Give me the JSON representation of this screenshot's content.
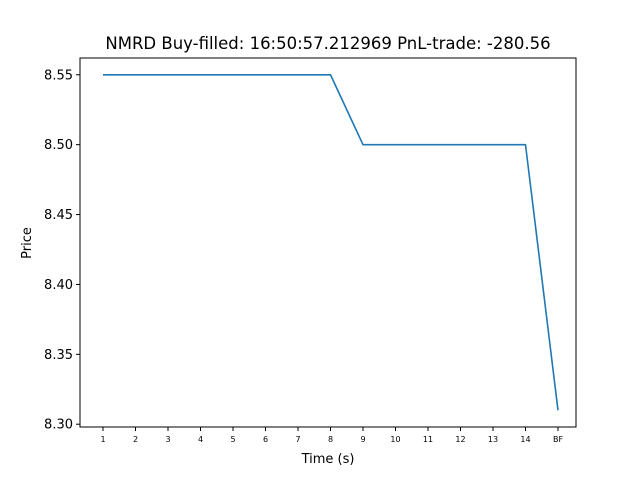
{
  "chart_data": {
    "type": "line",
    "title": "NMRD  Buy-filled:  16:50:57.212969  PnL-trade:  -280.56",
    "xlabel": "Time (s)",
    "ylabel": "Price",
    "categories": [
      "1",
      "2",
      "3",
      "4",
      "5",
      "6",
      "7",
      "8",
      "9",
      "10",
      "11",
      "12",
      "13",
      "14",
      "BF"
    ],
    "series": [
      {
        "values": [
          8.55,
          8.55,
          8.55,
          8.55,
          8.55,
          8.55,
          8.55,
          8.55,
          8.5,
          8.5,
          8.5,
          8.5,
          8.5,
          8.5,
          8.31
        ],
        "color": "#1f77b4"
      }
    ],
    "yticks": [
      "8.30",
      "8.35",
      "8.40",
      "8.45",
      "8.50",
      "8.55"
    ],
    "ylim": [
      8.298,
      8.562
    ],
    "grid": false,
    "legend": "none"
  }
}
